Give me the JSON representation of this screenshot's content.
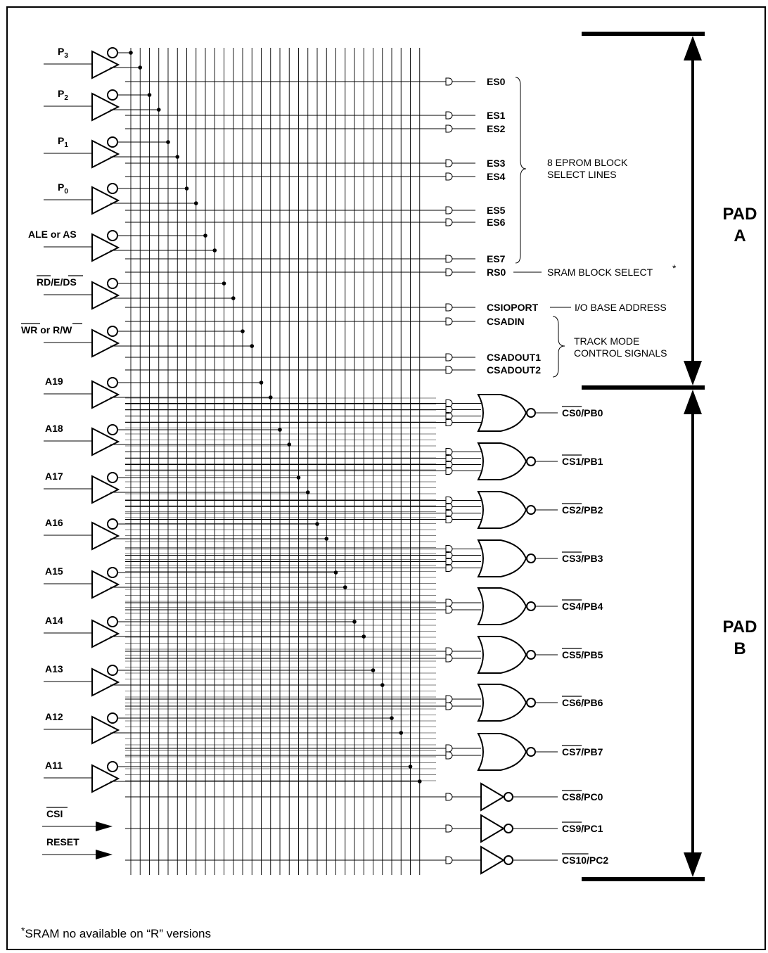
{
  "inputs": [
    {
      "label": "P3",
      "base": "P",
      "sub": "3",
      "overbar": false
    },
    {
      "label": "P2",
      "base": "P",
      "sub": "2",
      "overbar": false
    },
    {
      "label": "P1",
      "base": "P",
      "sub": "1",
      "overbar": false
    },
    {
      "label": "P0",
      "base": "P",
      "sub": "0",
      "overbar": false
    },
    {
      "label": "ALE or AS",
      "overbar": false
    },
    {
      "label": "RD/E/DS",
      "overbar": "RD,DS"
    },
    {
      "label": "WR or R/W",
      "overbar": "WR,W"
    },
    {
      "label": "A19"
    },
    {
      "label": "A18"
    },
    {
      "label": "A17"
    },
    {
      "label": "A16"
    },
    {
      "label": "A15"
    },
    {
      "label": "A14"
    },
    {
      "label": "A13"
    },
    {
      "label": "A12"
    },
    {
      "label": "A11"
    }
  ],
  "direct_inputs": [
    {
      "label": "CSI",
      "overbar": true
    },
    {
      "label": "RESET",
      "overbar": false
    }
  ],
  "pad_a_outputs": [
    {
      "label": "ES0"
    },
    {
      "label": "ES1"
    },
    {
      "label": "ES2"
    },
    {
      "label": "ES3"
    },
    {
      "label": "ES4"
    },
    {
      "label": "ES5"
    },
    {
      "label": "ES6"
    },
    {
      "label": "ES7"
    },
    {
      "label": "RS0"
    },
    {
      "label": "CSIOPORT"
    },
    {
      "label": "CSADIN"
    },
    {
      "label": "CSADOUT1"
    },
    {
      "label": "CSADOUT2"
    }
  ],
  "annotations": {
    "eprom_line1": "8 EPROM BLOCK",
    "eprom_line2": "SELECT LINES",
    "sram": "SRAM BLOCK SELECT",
    "sram_star": "*",
    "io": "I/O BASE ADDRESS",
    "track_line1": "TRACK MODE",
    "track_line2": "CONTROL SIGNALS"
  },
  "pad_b_outputs": [
    {
      "cs": "CS0",
      "port": "/PB0"
    },
    {
      "cs": "CS1",
      "port": "/PB1"
    },
    {
      "cs": "CS2",
      "port": "/PB2"
    },
    {
      "cs": "CS3",
      "port": "/PB3"
    },
    {
      "cs": "CS4",
      "port": "/PB4"
    },
    {
      "cs": "CS5",
      "port": "/PB5"
    },
    {
      "cs": "CS6",
      "port": "/PB6"
    },
    {
      "cs": "CS7",
      "port": "/PB7"
    },
    {
      "cs": "CS8",
      "port": "/PC0"
    },
    {
      "cs": "CS9",
      "port": "/PC1"
    },
    {
      "cs": "CS10",
      "port": "/PC2"
    }
  ],
  "pads": {
    "a_line1": "PAD",
    "a_line2": "A",
    "b_line1": "PAD",
    "b_line2": "B"
  },
  "footnote": {
    "star": "*",
    "text": "SRAM no available on “R” versions"
  }
}
